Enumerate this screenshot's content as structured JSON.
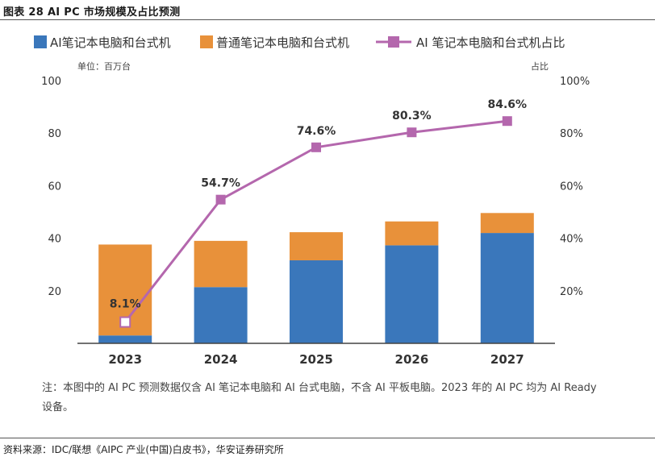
{
  "figure_title": "图表 28 AI PC 市场规模及占比预测",
  "source": "资料来源：IDC/联想《AIPC 产业(中国)白皮书》，华安证券研究所",
  "note": "注：本图中的 AI PC 预测数据仅含 AI 笔记本电脑和 AI 台式电脑，不含 AI 平板电脑。2023 年的 AI PC 均为 AI Ready 设备。",
  "colors": {
    "ai": "#3a77bb",
    "normal": "#e8913a",
    "share": "#b467ad",
    "axis": "#333333"
  },
  "chart_data": {
    "type": "bar",
    "stacked": true,
    "categories": [
      "2023",
      "2024",
      "2025",
      "2026",
      "2027"
    ],
    "series": [
      {
        "name": "AI笔记本电脑和台式机",
        "type": "bar",
        "axis": "left",
        "values": [
          3.0,
          21.4,
          31.6,
          37.3,
          42.0
        ]
      },
      {
        "name": "普通笔记本电脑和台式机",
        "type": "bar",
        "axis": "left",
        "values": [
          34.6,
          17.6,
          10.7,
          9.1,
          7.6
        ]
      },
      {
        "name": "AI 笔记本电脑和台式机占比",
        "type": "line",
        "axis": "right",
        "values": [
          8.1,
          54.7,
          74.6,
          80.3,
          84.6
        ]
      }
    ],
    "data_labels": [
      "8.1%",
      "54.7%",
      "74.6%",
      "80.3%",
      "84.6%"
    ],
    "left_unit": "单位：百万台",
    "right_unit": "占比",
    "left_ticks": [
      "20",
      "40",
      "60",
      "80",
      "100"
    ],
    "right_ticks": [
      "20%",
      "40%",
      "60%",
      "80%",
      "100%"
    ],
    "ylim_left": [
      0,
      100
    ],
    "ylim_right": [
      0,
      100
    ],
    "grid": false,
    "legend_position": "top"
  }
}
